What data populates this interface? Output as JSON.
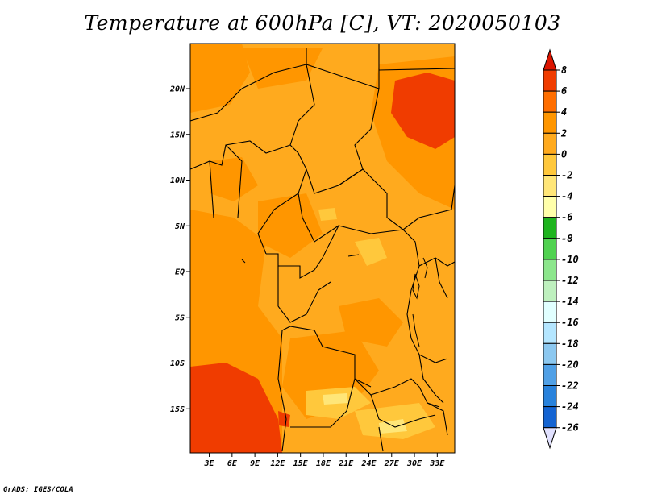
{
  "title": "Temperature at 600hPa [C], VT: 2020050103",
  "footer": "GrADS: IGES/COLA",
  "map": {
    "region": "Central Africa",
    "lon_labels": [
      "3E",
      "6E",
      "9E",
      "12E",
      "15E",
      "18E",
      "21E",
      "24E",
      "27E",
      "30E",
      "33E"
    ],
    "lat_labels": [
      "20N",
      "15N",
      "10N",
      "5N",
      "EQ",
      "5S",
      "10S",
      "15S"
    ]
  },
  "colorbar": {
    "levels": [
      "8",
      "6",
      "4",
      "2",
      "0",
      "-2",
      "-4",
      "-6",
      "-8",
      "-10",
      "-12",
      "-14",
      "-16",
      "-18",
      "-20",
      "-22",
      "-24",
      "-26"
    ],
    "colors": [
      "#c80000",
      "#f03c00",
      "#ff6e00",
      "#ff9600",
      "#ffaa1e",
      "#ffc83c",
      "#ffe678",
      "#ffffaa",
      "#1eb41e",
      "#50d250",
      "#8ce68c",
      "#bef0be",
      "#e1ffff",
      "#b4e6ff",
      "#8cc8f0",
      "#50a0e6",
      "#2882dc",
      "#1464d2",
      "#0a46b4",
      "#0a1e78",
      "#e6e6ff"
    ],
    "top_arrow_color": "#dc1400",
    "bottom_arrow_color": "#e1e1ff"
  }
}
